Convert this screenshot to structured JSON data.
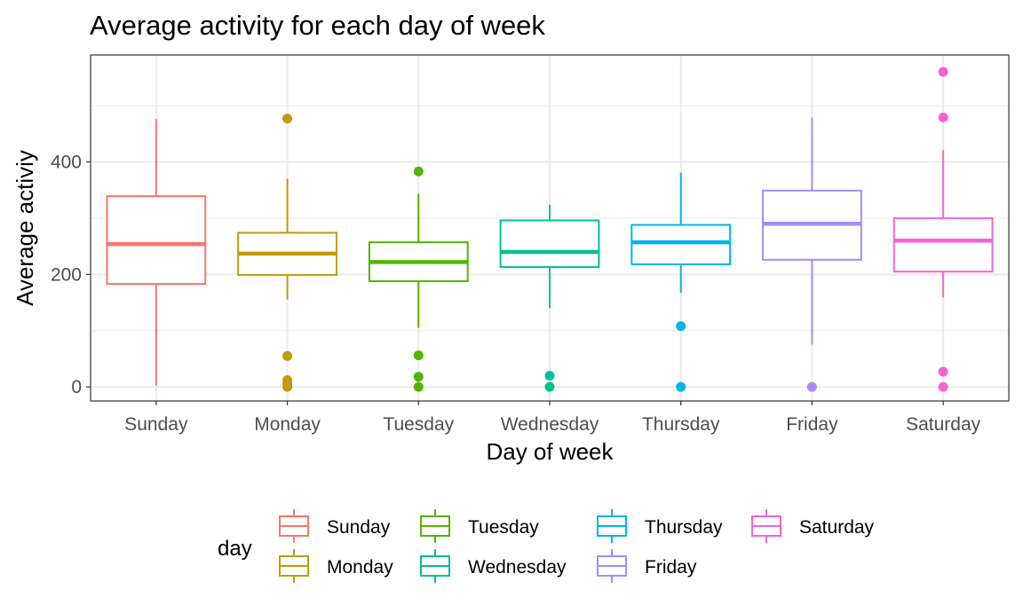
{
  "chart_data": {
    "type": "boxplot",
    "title": "Average activity for each day of week",
    "xlabel": "Day of week",
    "ylabel": "Average activiy",
    "ylim": [
      -25,
      590
    ],
    "yticks": [
      0,
      200,
      400
    ],
    "grid": true,
    "legend_position": "bottom",
    "legend_title": "day",
    "categories": [
      "Sunday",
      "Monday",
      "Tuesday",
      "Wednesday",
      "Thursday",
      "Friday",
      "Saturday"
    ],
    "colors": [
      "#F8766D",
      "#C49A00",
      "#53B400",
      "#00C094",
      "#00B6EB",
      "#A58AFF",
      "#FB61D7"
    ],
    "series": [
      {
        "name": "Sunday",
        "min": 2,
        "q1": 183,
        "median": 254,
        "q3": 339,
        "max": 476,
        "outliers": []
      },
      {
        "name": "Monday",
        "min": 155,
        "q1": 199,
        "median": 237,
        "q3": 274,
        "max": 370,
        "outliers": [
          477,
          55,
          12,
          5,
          0
        ]
      },
      {
        "name": "Tuesday",
        "min": 105,
        "q1": 188,
        "median": 222,
        "q3": 257,
        "max": 343,
        "outliers": [
          383,
          56,
          18,
          0
        ]
      },
      {
        "name": "Wednesday",
        "min": 140,
        "q1": 213,
        "median": 240,
        "q3": 296,
        "max": 324,
        "outliers": [
          20,
          0
        ]
      },
      {
        "name": "Thursday",
        "min": 167,
        "q1": 218,
        "median": 257,
        "q3": 288,
        "max": 381,
        "outliers": [
          108,
          0
        ]
      },
      {
        "name": "Friday",
        "min": 75,
        "q1": 226,
        "median": 290,
        "q3": 349,
        "max": 479,
        "outliers": [
          0
        ]
      },
      {
        "name": "Saturday",
        "min": 159,
        "q1": 205,
        "median": 260,
        "q3": 300,
        "max": 421,
        "outliers": [
          560,
          479,
          27,
          0
        ]
      }
    ]
  }
}
